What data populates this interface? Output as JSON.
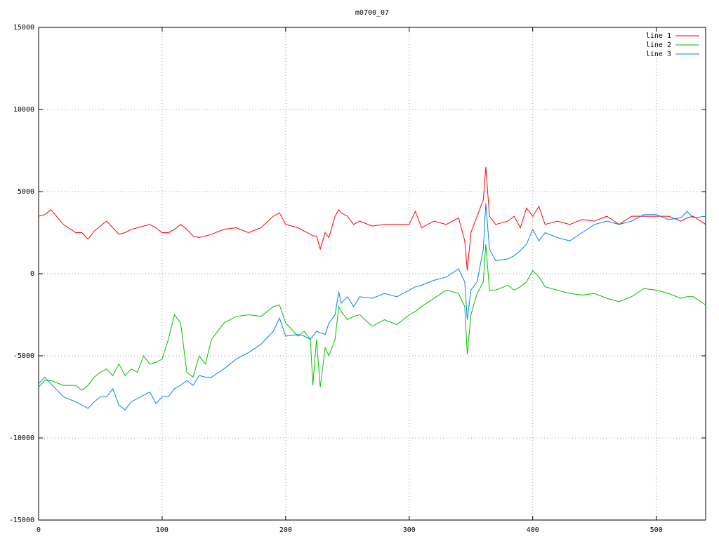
{
  "chart_data": {
    "type": "line",
    "title": "m0700_07",
    "x": [
      0,
      5,
      10,
      20,
      30,
      35,
      40,
      45,
      50,
      55,
      60,
      65,
      70,
      75,
      80,
      85,
      90,
      95,
      100,
      105,
      110,
      115,
      120,
      125,
      130,
      135,
      140,
      150,
      160,
      170,
      180,
      190,
      195,
      200,
      210,
      215,
      220,
      222,
      225,
      228,
      232,
      235,
      240,
      243,
      245,
      250,
      255,
      260,
      270,
      280,
      290,
      300,
      305,
      310,
      320,
      330,
      340,
      345,
      347,
      350,
      355,
      360,
      362,
      365,
      370,
      380,
      385,
      390,
      395,
      400,
      405,
      410,
      420,
      430,
      440,
      450,
      460,
      470,
      480,
      490,
      500,
      510,
      520,
      525,
      530,
      540
    ],
    "series": [
      {
        "name": "line 1",
        "color": "#ff0000",
        "values": [
          3500,
          3600,
          3900,
          3000,
          2500,
          2500,
          2100,
          2600,
          2900,
          3200,
          2800,
          2400,
          2500,
          2700,
          2800,
          2900,
          3000,
          2800,
          2500,
          2500,
          2700,
          3000,
          2700,
          2300,
          2200,
          2300,
          2400,
          2700,
          2800,
          2500,
          2800,
          3500,
          3700,
          3000,
          2800,
          2600,
          2400,
          2300,
          2300,
          1500,
          2500,
          2200,
          3500,
          3900,
          3700,
          3500,
          3000,
          3200,
          2900,
          3000,
          3000,
          3000,
          3800,
          2800,
          3200,
          3000,
          3400,
          2000,
          200,
          2500,
          3500,
          4500,
          6500,
          3500,
          3000,
          3200,
          3500,
          2800,
          4000,
          3500,
          4100,
          3000,
          3200,
          3000,
          3300,
          3200,
          3500,
          3000,
          3500,
          3500,
          3500,
          3500,
          3200,
          3400,
          3500,
          3000
        ]
      },
      {
        "name": "line 2",
        "color": "#00c000",
        "values": [
          -6900,
          -6500,
          -6500,
          -6800,
          -6800,
          -7100,
          -6800,
          -6300,
          -6000,
          -5800,
          -6200,
          -5500,
          -6200,
          -5800,
          -6000,
          -5000,
          -5500,
          -5400,
          -5200,
          -4000,
          -2500,
          -3000,
          -6000,
          -6300,
          -5000,
          -5500,
          -4000,
          -3000,
          -2600,
          -2500,
          -2600,
          -2000,
          -1900,
          -3000,
          -3800,
          -3500,
          -4000,
          -6800,
          -4000,
          -6900,
          -4500,
          -5000,
          -4000,
          -2000,
          -2300,
          -2800,
          -2600,
          -2500,
          -3200,
          -2800,
          -3100,
          -2500,
          -2300,
          -2000,
          -1500,
          -1000,
          -1200,
          -2000,
          -4900,
          -2500,
          -1200,
          -500,
          1800,
          -1000,
          -1000,
          -700,
          -1000,
          -800,
          -500,
          200,
          -200,
          -800,
          -1000,
          -1200,
          -1300,
          -1200,
          -1500,
          -1700,
          -1400,
          -900,
          -1000,
          -1200,
          -1500,
          -1400,
          -1400,
          -1900
        ]
      },
      {
        "name": "line 3",
        "color": "#0080ff",
        "values": [
          -6700,
          -6300,
          -6700,
          -7500,
          -7800,
          -8000,
          -8200,
          -7800,
          -7500,
          -7500,
          -7000,
          -8000,
          -8300,
          -7800,
          -7600,
          -7400,
          -7200,
          -7900,
          -7500,
          -7500,
          -7000,
          -6800,
          -6500,
          -6800,
          -6200,
          -6300,
          -6300,
          -5800,
          -5200,
          -4800,
          -4300,
          -3500,
          -2700,
          -3800,
          -3700,
          -3800,
          -4000,
          -3800,
          -3500,
          -3600,
          -3700,
          -3000,
          -2500,
          -1100,
          -1800,
          -1400,
          -2000,
          -1400,
          -1500,
          -1200,
          -1400,
          -1000,
          -800,
          -700,
          -400,
          -200,
          300,
          -500,
          -2800,
          -1000,
          -500,
          1500,
          4300,
          1500,
          800,
          900,
          1100,
          1400,
          1800,
          2700,
          2000,
          2500,
          2200,
          2000,
          2500,
          3000,
          3200,
          3000,
          3200,
          3600,
          3600,
          3300,
          3400,
          3800,
          3400,
          3500
        ]
      }
    ],
    "xlim": [
      0,
      540
    ],
    "xticks": [
      0,
      100,
      200,
      300,
      400,
      500
    ],
    "ylim": [
      -15000,
      15000
    ],
    "yticks": [
      -15000,
      -10000,
      -5000,
      0,
      5000,
      10000,
      15000
    ],
    "grid": true,
    "legend": "top-right"
  }
}
